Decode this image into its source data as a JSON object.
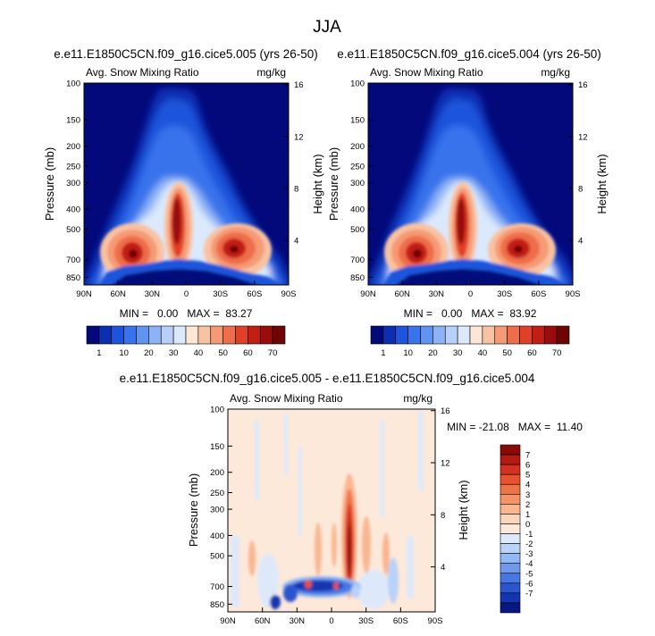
{
  "figure": {
    "title": "JJA",
    "lat_ticks": [
      "90N",
      "60N",
      "30N",
      "0",
      "30S",
      "60S",
      "90S"
    ],
    "pressure_ticks": [
      "100",
      "150",
      "200",
      "250",
      "300",
      "400",
      "500",
      "700",
      "850"
    ],
    "height_ticks": [
      "16",
      "12",
      "8",
      "4"
    ]
  },
  "chart_data": [
    {
      "type": "heatmap",
      "title": "e.e11.E1850C5CN.f09_g16.cice5.005 (yrs 26-50)",
      "subtitle_left": "Avg. Snow Mixing Ratio",
      "subtitle_right": "mg/kg",
      "xlabel": "",
      "ylabel": "Pressure (mb)",
      "ylabel_right": "Height (km)",
      "x_range": [
        90,
        -90
      ],
      "y_range": [
        100,
        925
      ],
      "y_scale": "log",
      "stats": "MIN =   0.00   MAX =  83.27",
      "colorbar": {
        "orientation": "horizontal",
        "labels": [
          "1",
          "10",
          "20",
          "30",
          "40",
          "50",
          "60",
          "70"
        ],
        "colors": [
          "#03087a",
          "#0a2fb3",
          "#1c54dc",
          "#3773ec",
          "#5f94f3",
          "#8cb3f7",
          "#b6d0fa",
          "#dce9fc",
          "#fde6d6",
          "#f9c2a2",
          "#f59a74",
          "#ef6d49",
          "#e04028",
          "#c21f14",
          "#9a0b0b",
          "#6e0505"
        ]
      },
      "peaks": [
        {
          "lat": 47,
          "pressure": 610,
          "value": 83.27
        },
        {
          "lat": 10,
          "pressure": 430,
          "value": 80
        },
        {
          "lat": -40,
          "pressure": 560,
          "value": 78
        }
      ]
    },
    {
      "type": "heatmap",
      "title": "e.e11.E1850C5CN.f09_g16.cice5.004 (yrs 26-50)",
      "subtitle_left": "Avg. Snow Mixing Ratio",
      "subtitle_right": "mg/kg",
      "xlabel": "",
      "ylabel": "Pressure (mb)",
      "ylabel_right": "Height (km)",
      "x_range": [
        90,
        -90
      ],
      "y_range": [
        100,
        925
      ],
      "y_scale": "log",
      "stats": "MIN =   0.00   MAX =  83.92",
      "colorbar": {
        "orientation": "horizontal",
        "labels": [
          "1",
          "10",
          "20",
          "30",
          "40",
          "50",
          "60",
          "70"
        ],
        "colors": [
          "#03087a",
          "#0a2fb3",
          "#1c54dc",
          "#3773ec",
          "#5f94f3",
          "#8cb3f7",
          "#b6d0fa",
          "#dce9fc",
          "#fde6d6",
          "#f9c2a2",
          "#f59a74",
          "#ef6d49",
          "#e04028",
          "#c21f14",
          "#9a0b0b",
          "#6e0505"
        ]
      },
      "peaks": [
        {
          "lat": 47,
          "pressure": 610,
          "value": 83.92
        },
        {
          "lat": 10,
          "pressure": 430,
          "value": 81
        },
        {
          "lat": -40,
          "pressure": 560,
          "value": 79
        }
      ]
    },
    {
      "type": "heatmap",
      "title": "e.e11.E1850C5CN.f09_g16.cice5.005 - e.e11.E1850C5CN.f09_g16.cice5.004",
      "subtitle_left": "Avg. Snow Mixing Ratio",
      "subtitle_right": "mg/kg",
      "xlabel": "",
      "ylabel": "Pressure (mb)",
      "ylabel_right": "Height (km)",
      "x_range": [
        90,
        -90
      ],
      "y_range": [
        100,
        925
      ],
      "y_scale": "log",
      "stats": "MIN = -21.08   MAX =  11.40",
      "colorbar": {
        "orientation": "vertical",
        "labels": [
          "7",
          "6",
          "5",
          "4",
          "3",
          "2",
          "1",
          "0",
          "-1",
          "-2",
          "-3",
          "-4",
          "-5",
          "-6",
          "-7"
        ],
        "colors": [
          "#8a0a0a",
          "#b31a12",
          "#d43220",
          "#e8522f",
          "#f07347",
          "#f59468",
          "#f9b691",
          "#fcd6bc",
          "#fde9da",
          "#dde9fb",
          "#b9d2f7",
          "#94b8f3",
          "#6e99ec",
          "#4877e2",
          "#2a55cf",
          "#1434b0",
          "#071880"
        ]
      },
      "features": [
        {
          "lat": 15,
          "pressure": 500,
          "value": 7,
          "desc": ""
        },
        {
          "lat": 5,
          "pressure": 740,
          "value": -7,
          "desc": ""
        }
      ]
    }
  ],
  "colors": {
    "background": "#ffffff",
    "frame": "#000000"
  }
}
